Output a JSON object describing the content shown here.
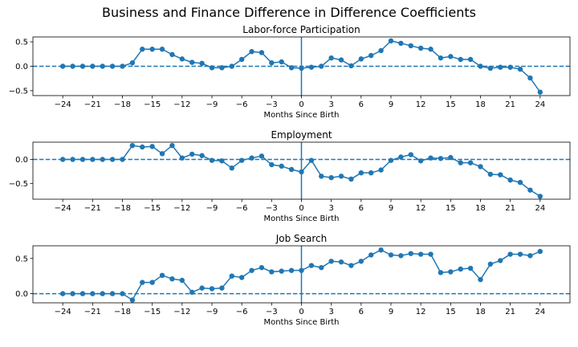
{
  "figure_title": "Business and Finance Difference in Difference Coefficients",
  "colors": {
    "series": "#1f77b4",
    "axes": "#000000",
    "background": "#ffffff"
  },
  "chart_data": [
    {
      "type": "line",
      "title": "Labor-force Participation",
      "xlabel": "Months Since Birth",
      "ylabel": "",
      "x": [
        -24,
        -23,
        -22,
        -21,
        -20,
        -19,
        -18,
        -17,
        -16,
        -15,
        -14,
        -13,
        -12,
        -11,
        -10,
        -9,
        -8,
        -7,
        -6,
        -5,
        -4,
        -3,
        -2,
        -1,
        0,
        1,
        2,
        3,
        4,
        5,
        6,
        7,
        8,
        9,
        10,
        11,
        12,
        13,
        14,
        15,
        16,
        17,
        18,
        19,
        20,
        21,
        22,
        23,
        24
      ],
      "series": [
        {
          "values": [
            0,
            0,
            0,
            0,
            0,
            0,
            0,
            0.07,
            0.35,
            0.35,
            0.35,
            0.24,
            0.15,
            0.08,
            0.06,
            -0.03,
            -0.03,
            0.0,
            0.14,
            0.3,
            0.28,
            0.07,
            0.09,
            -0.03,
            -0.04,
            -0.02,
            0.0,
            0.17,
            0.13,
            0.01,
            0.15,
            0.22,
            0.32,
            0.52,
            0.47,
            0.42,
            0.37,
            0.35,
            0.17,
            0.2,
            0.14,
            0.14,
            0.0,
            -0.04,
            -0.02,
            -0.02,
            -0.06,
            -0.24,
            -0.53
          ]
        }
      ],
      "xticks": [
        -24,
        -21,
        -18,
        -15,
        -12,
        -9,
        -6,
        -3,
        0,
        3,
        6,
        9,
        12,
        15,
        18,
        21,
        24
      ],
      "yticks": [
        -0.5,
        0.0,
        0.5
      ],
      "ytick_labels": [
        "−0.5",
        "0.0",
        "0.5"
      ],
      "xlim": [
        -27,
        27
      ],
      "ylim": [
        -0.6,
        0.6
      ],
      "hline": 0,
      "vline": 0,
      "grid": false
    },
    {
      "type": "line",
      "title": "Employment",
      "xlabel": "Months Since Birth",
      "ylabel": "",
      "x": [
        -24,
        -23,
        -22,
        -21,
        -20,
        -19,
        -18,
        -17,
        -16,
        -15,
        -14,
        -13,
        -12,
        -11,
        -10,
        -9,
        -8,
        -7,
        -6,
        -5,
        -4,
        -3,
        -2,
        -1,
        0,
        1,
        2,
        3,
        4,
        5,
        6,
        7,
        8,
        9,
        10,
        11,
        12,
        13,
        14,
        15,
        16,
        17,
        18,
        19,
        20,
        21,
        22,
        23,
        24
      ],
      "series": [
        {
          "values": [
            0,
            0,
            0,
            0,
            0,
            0,
            0,
            0.29,
            0.26,
            0.27,
            0.12,
            0.29,
            0.03,
            0.11,
            0.08,
            -0.02,
            -0.03,
            -0.18,
            -0.02,
            0.03,
            0.07,
            -0.11,
            -0.14,
            -0.21,
            -0.26,
            -0.02,
            -0.35,
            -0.38,
            -0.35,
            -0.41,
            -0.28,
            -0.28,
            -0.22,
            -0.02,
            0.05,
            0.1,
            -0.03,
            0.03,
            0.02,
            0.04,
            -0.07,
            -0.07,
            -0.15,
            -0.31,
            -0.32,
            -0.43,
            -0.48,
            -0.64,
            -0.77
          ]
        }
      ],
      "xticks": [
        -24,
        -21,
        -18,
        -15,
        -12,
        -9,
        -6,
        -3,
        0,
        3,
        6,
        9,
        12,
        15,
        18,
        21,
        24
      ],
      "yticks": [
        -0.5,
        0.0
      ],
      "ytick_labels": [
        "−0.5",
        "0.0"
      ],
      "xlim": [
        -27,
        27
      ],
      "ylim": [
        -0.83,
        0.36
      ],
      "hline": 0,
      "vline": 0,
      "grid": false
    },
    {
      "type": "line",
      "title": "Job Search",
      "xlabel": "Months Since Birth",
      "ylabel": "",
      "x": [
        -24,
        -23,
        -22,
        -21,
        -20,
        -19,
        -18,
        -17,
        -16,
        -15,
        -14,
        -13,
        -12,
        -11,
        -10,
        -9,
        -8,
        -7,
        -6,
        -5,
        -4,
        -3,
        -2,
        -1,
        0,
        1,
        2,
        3,
        4,
        5,
        6,
        7,
        8,
        9,
        10,
        11,
        12,
        13,
        14,
        15,
        16,
        17,
        18,
        19,
        20,
        21,
        22,
        23,
        24
      ],
      "series": [
        {
          "values": [
            0,
            0,
            0,
            0,
            0,
            0,
            0,
            -0.09,
            0.16,
            0.16,
            0.26,
            0.21,
            0.19,
            0.02,
            0.08,
            0.07,
            0.08,
            0.25,
            0.23,
            0.33,
            0.37,
            0.31,
            0.32,
            0.33,
            0.33,
            0.4,
            0.37,
            0.46,
            0.45,
            0.4,
            0.46,
            0.55,
            0.62,
            0.55,
            0.54,
            0.57,
            0.56,
            0.56,
            0.3,
            0.31,
            0.35,
            0.36,
            0.2,
            0.42,
            0.47,
            0.56,
            0.56,
            0.54,
            0.6
          ]
        }
      ],
      "xticks": [
        -24,
        -21,
        -18,
        -15,
        -12,
        -9,
        -6,
        -3,
        0,
        3,
        6,
        9,
        12,
        15,
        18,
        21,
        24
      ],
      "yticks": [
        0.0,
        0.5
      ],
      "ytick_labels": [
        "0.0",
        "0.5"
      ],
      "xlim": [
        -27,
        27
      ],
      "ylim": [
        -0.13,
        0.68
      ],
      "hline": 0,
      "vline": 0,
      "grid": false
    }
  ]
}
